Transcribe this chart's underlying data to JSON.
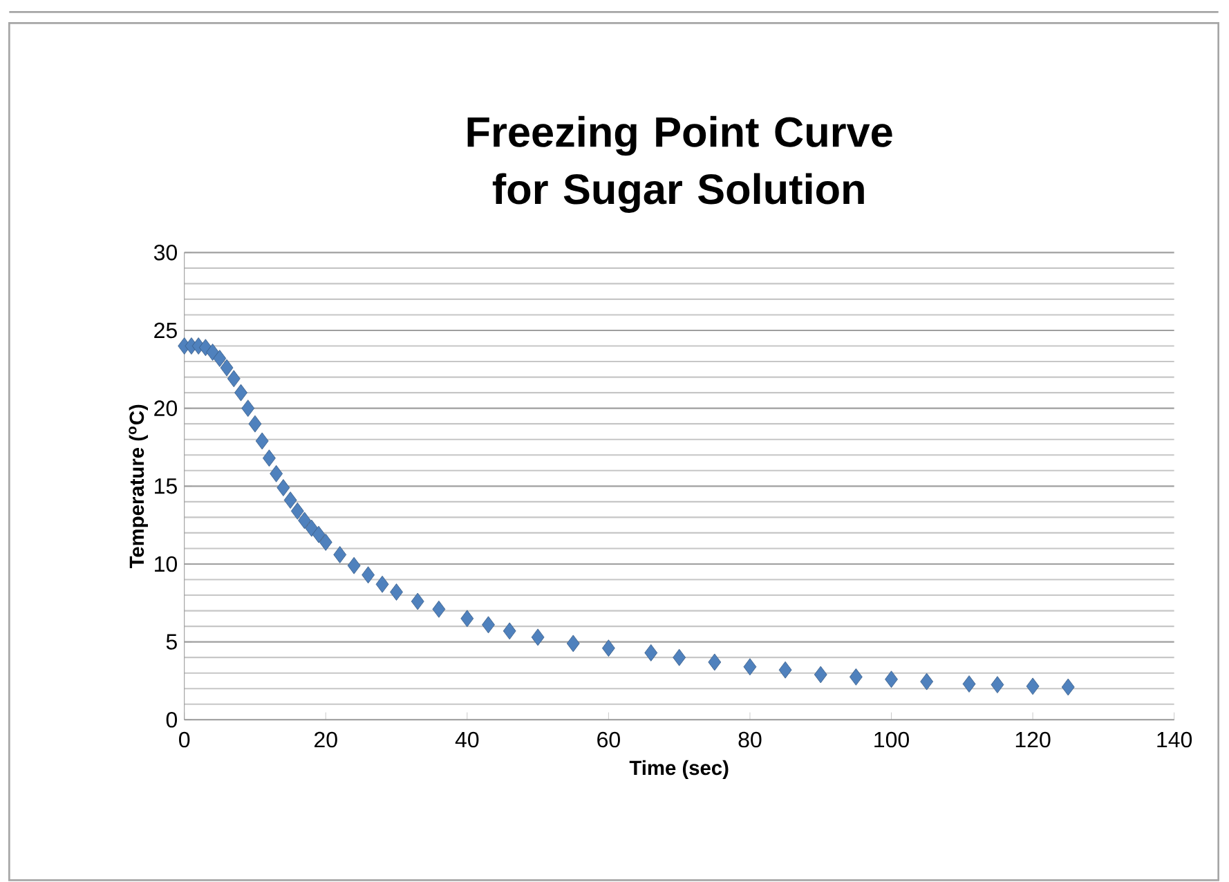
{
  "chart_data": {
    "type": "scatter",
    "title": "Freezing Point Curve for Sugar Solution",
    "xlabel": "Time (sec)",
    "ylabel": "Temperature ($^{o}$C)",
    "x": [
      0,
      1,
      2,
      3,
      4,
      5,
      6,
      7,
      8,
      9,
      10,
      11,
      12,
      13,
      14,
      15,
      16,
      17,
      18,
      19,
      20,
      22,
      24,
      26,
      28,
      30,
      33,
      36,
      40,
      43,
      46,
      50,
      55,
      60,
      66,
      70,
      75,
      80,
      85,
      90,
      95,
      100,
      105,
      111,
      115,
      120,
      125
    ],
    "values": [
      24.0,
      24.0,
      24.0,
      23.9,
      23.6,
      23.2,
      22.6,
      21.9,
      21.0,
      20.0,
      19.0,
      17.9,
      16.8,
      15.8,
      14.9,
      14.1,
      13.4,
      12.8,
      12.3,
      11.9,
      11.4,
      10.6,
      9.9,
      9.3,
      8.7,
      8.2,
      7.6,
      7.1,
      6.5,
      6.1,
      5.7,
      5.3,
      4.9,
      4.6,
      4.3,
      4.0,
      3.7,
      3.4,
      3.2,
      2.9,
      2.75,
      2.6,
      2.45,
      2.3,
      2.25,
      2.15,
      2.1
    ],
    "color": "#4f81bd",
    "marker": "diamond",
    "xlim": [
      0,
      140
    ],
    "ylim": [
      0,
      30
    ],
    "xticks": [
      0,
      20,
      40,
      60,
      80,
      100,
      120,
      140
    ],
    "yticks": [
      0,
      5,
      10,
      15,
      20,
      25,
      30
    ],
    "grid": "y"
  }
}
